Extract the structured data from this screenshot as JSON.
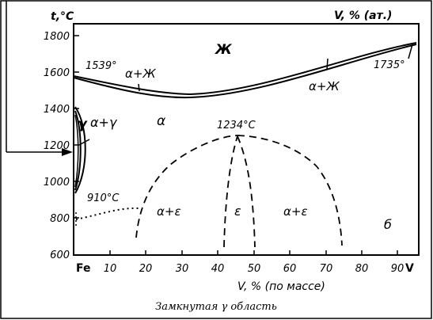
{
  "y_axis": {
    "label": "t,°C",
    "ticks": [
      "1800",
      "1600",
      "1400",
      "1200",
      "1000",
      "800",
      "600"
    ]
  },
  "top_axis": {
    "label": "V, % (ат.)"
  },
  "x_axis": {
    "start_label": "Fe",
    "end_label": "V",
    "ticks": [
      "10",
      "20",
      "30",
      "40",
      "50",
      "60",
      "70",
      "80",
      "90"
    ],
    "label": "V, % (по массе)"
  },
  "annotations": {
    "liquid": "Ж",
    "fe_melting": "1539°",
    "v_melting": "1735°",
    "alpha_plus_liquid_left": "α+Ж",
    "alpha_plus_liquid_right": "α+Ж",
    "gamma": "γ",
    "alpha_plus_gamma": "α+γ",
    "alpha": "α",
    "sigma_max": "1234°С",
    "fe_transition": "910°С",
    "alpha_plus_sigma_left": "α+ε",
    "sigma": "ε",
    "alpha_plus_sigma_right": "α+ε",
    "delta": "б"
  },
  "caption": "Замкнутая γ область"
}
